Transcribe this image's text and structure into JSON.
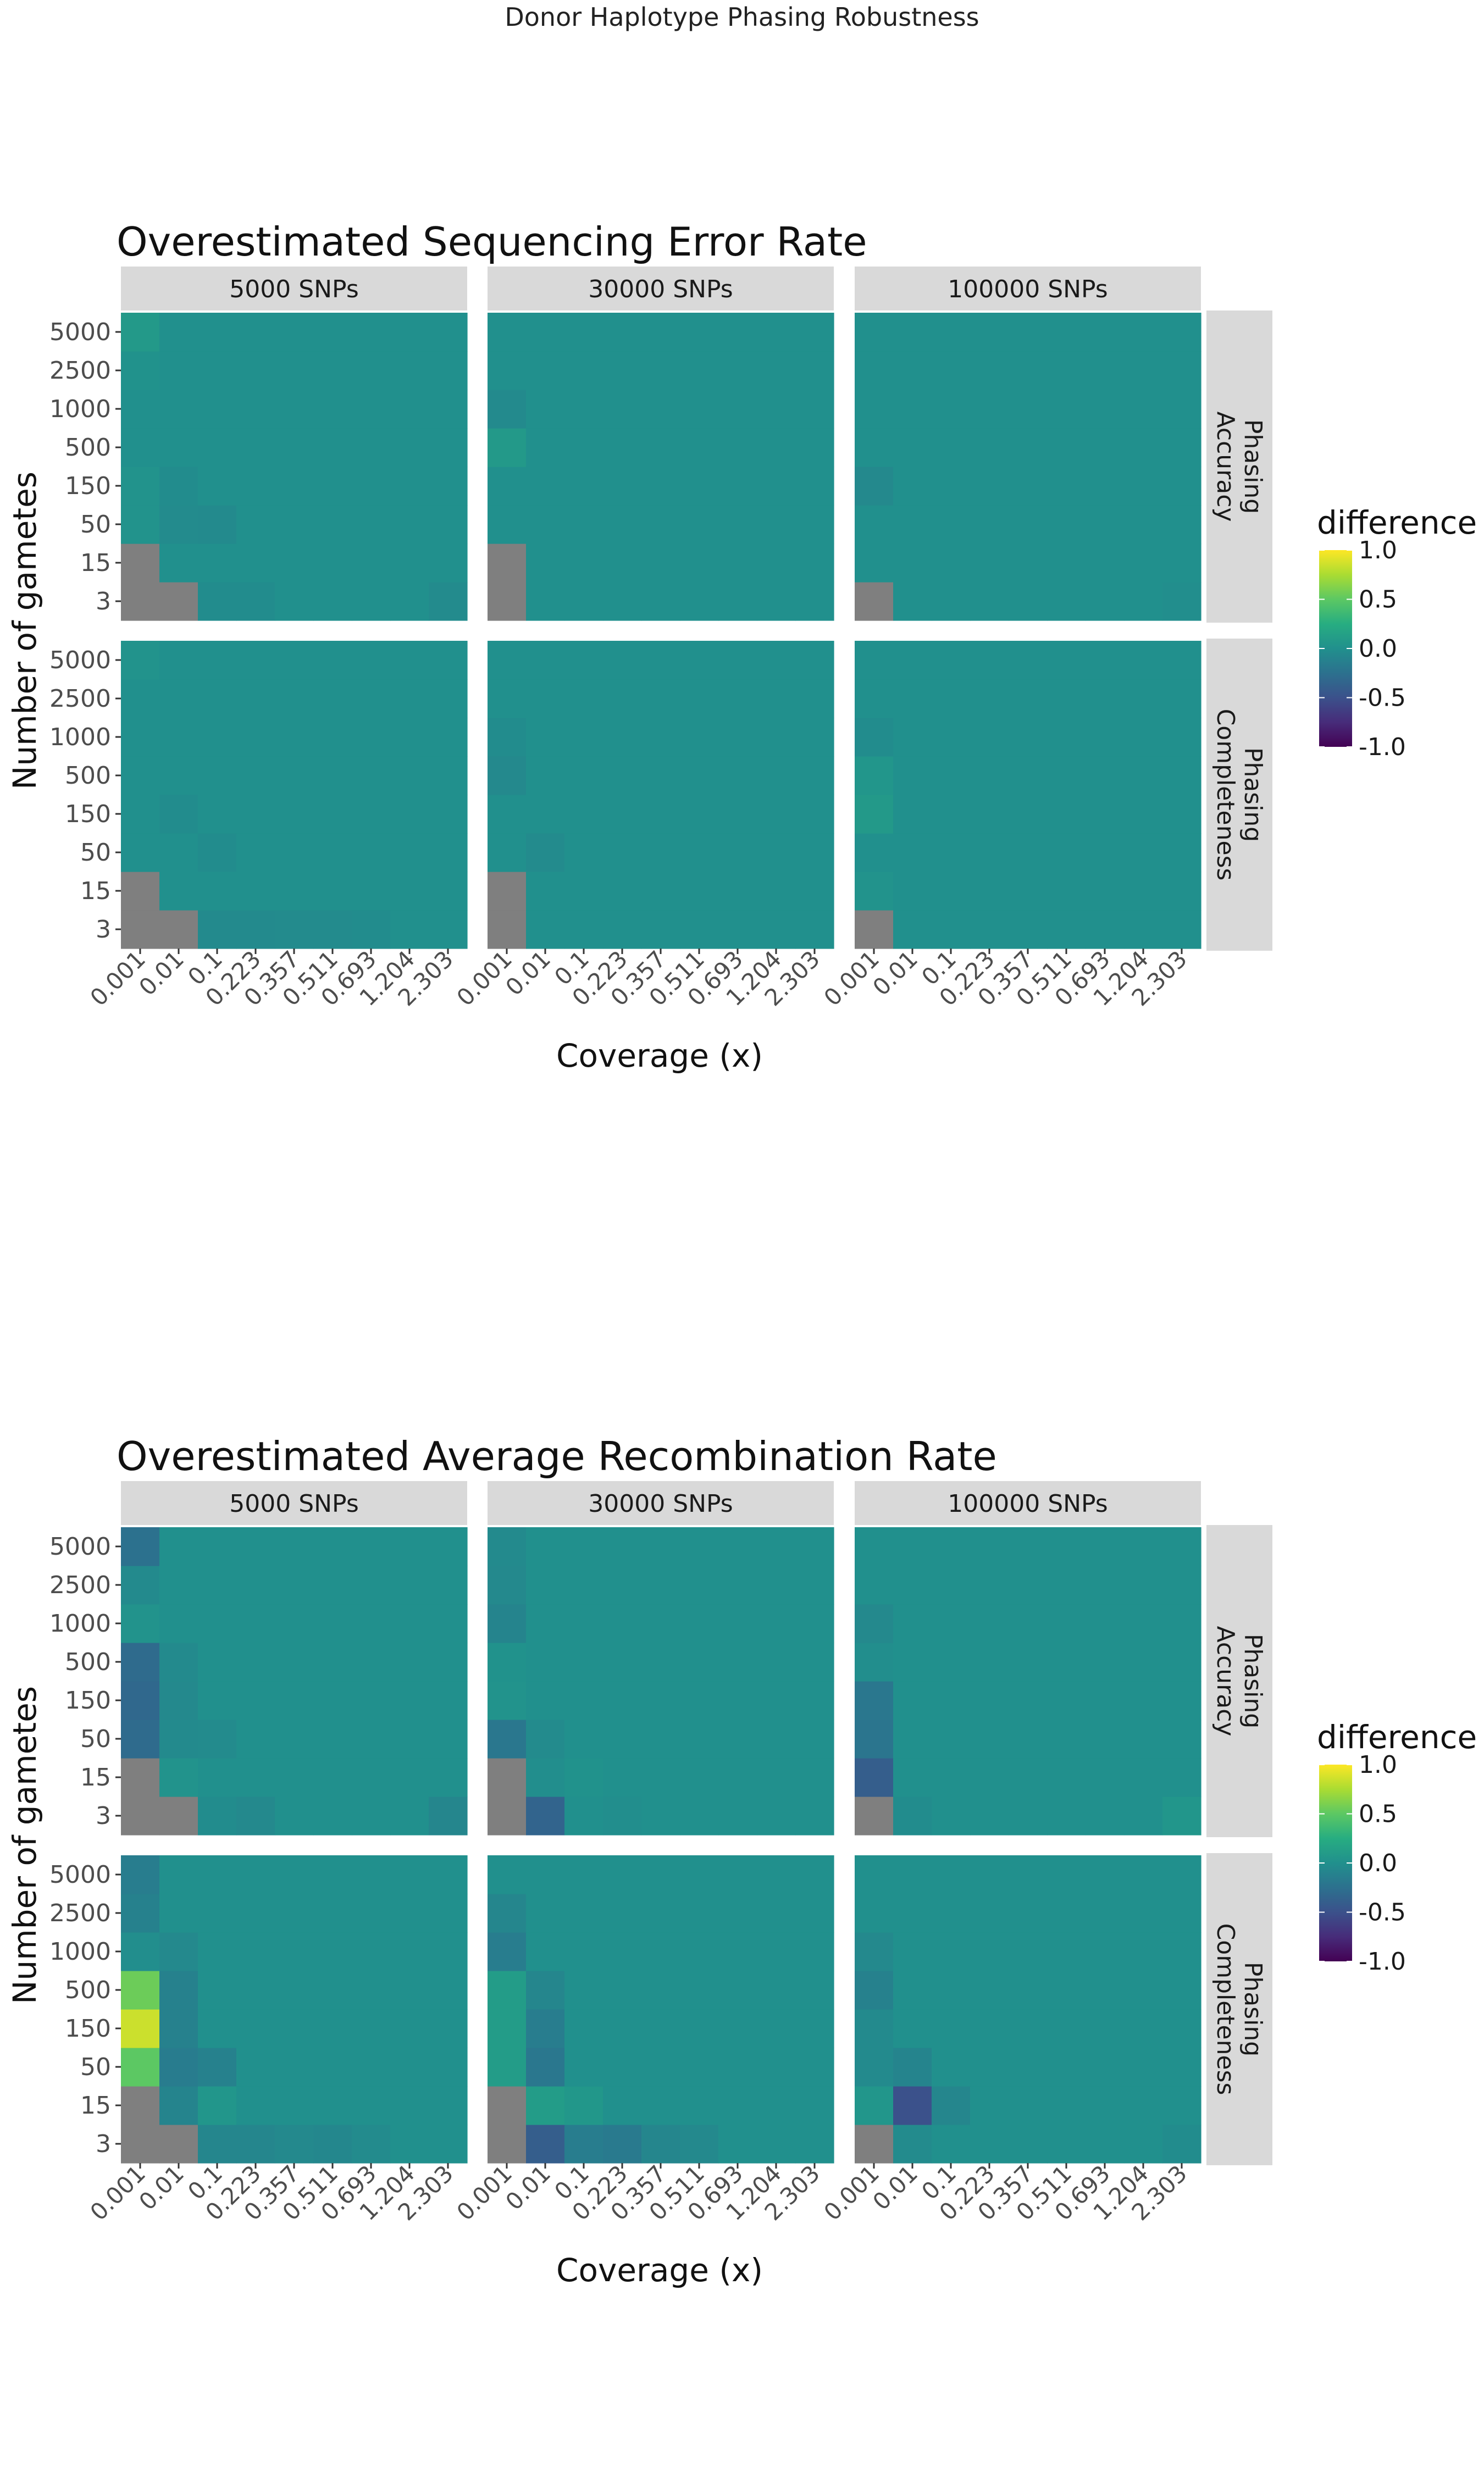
{
  "figure": {
    "title": "Donor Haplotype Phasing Robustness"
  },
  "chart_data": [
    {
      "type": "heatmap",
      "title": "Overestimated Sequencing Error Rate",
      "xlabel": "Coverage (x)",
      "ylabel": "Number of gametes",
      "x_categories": [
        "0.001",
        "0.01",
        "0.1",
        "0.223",
        "0.357",
        "0.511",
        "0.693",
        "1.204",
        "2.303"
      ],
      "y_categories": [
        "3",
        "15",
        "50",
        "150",
        "500",
        "1000",
        "2500",
        "5000"
      ],
      "facet_columns": [
        "5000 SNPs",
        "30000 SNPs",
        "100000 SNPs"
      ],
      "facet_rows": [
        "Phasing\nAccuracy",
        "Phasing\nCompleteness"
      ],
      "legend": {
        "title": "difference",
        "ticks": [
          "1.0",
          "0.5",
          "0.0",
          "-0.5",
          "-1.0"
        ],
        "range": [
          -1,
          1
        ],
        "position": "right"
      },
      "background_value": 0.0,
      "missing_color": "#7f7f7f",
      "missing_cells": [
        {
          "facet": [
            0,
            0
          ],
          "cells": [
            [
              0,
              0
            ],
            [
              1,
              0
            ],
            [
              0,
              1
            ]
          ]
        },
        {
          "facet": [
            0,
            1
          ],
          "cells": [
            [
              0,
              0
            ],
            [
              0,
              1
            ]
          ]
        },
        {
          "facet": [
            0,
            2
          ],
          "cells": [
            [
              0,
              0
            ]
          ]
        },
        {
          "facet": [
            1,
            0
          ],
          "cells": [
            [
              0,
              0
            ],
            [
              1,
              0
            ],
            [
              0,
              1
            ]
          ]
        },
        {
          "facet": [
            1,
            1
          ],
          "cells": [
            [
              0,
              0
            ],
            [
              0,
              1
            ]
          ]
        },
        {
          "facet": [
            1,
            2
          ],
          "cells": [
            [
              0,
              0
            ]
          ]
        }
      ],
      "nonzero_cells": [
        {
          "facet": [
            0,
            0
          ],
          "cells": [
            [
              0,
              7,
              0.08
            ],
            [
              0,
              6,
              0.02
            ],
            [
              1,
              2,
              -0.04
            ],
            [
              1,
              3,
              -0.03
            ],
            [
              2,
              2,
              -0.05
            ],
            [
              2,
              0,
              -0.03
            ],
            [
              3,
              0,
              -0.03
            ],
            [
              8,
              0,
              -0.04
            ],
            [
              0,
              2,
              0.03
            ],
            [
              0,
              3,
              0.03
            ]
          ]
        },
        {
          "facet": [
            0,
            1
          ],
          "cells": [
            [
              0,
              4,
              0.08
            ],
            [
              0,
              5,
              -0.05
            ]
          ]
        },
        {
          "facet": [
            0,
            2
          ],
          "cells": [
            [
              0,
              3,
              -0.06
            ],
            [
              8,
              0,
              -0.02
            ]
          ]
        },
        {
          "facet": [
            1,
            0
          ],
          "cells": [
            [
              0,
              7,
              0.03
            ],
            [
              1,
              3,
              -0.03
            ],
            [
              2,
              2,
              -0.03
            ],
            [
              2,
              0,
              -0.05
            ],
            [
              3,
              0,
              -0.05
            ],
            [
              4,
              0,
              -0.04
            ],
            [
              5,
              0,
              -0.04
            ],
            [
              6,
              0,
              -0.03
            ]
          ]
        },
        {
          "facet": [
            1,
            1
          ],
          "cells": [
            [
              0,
              4,
              -0.06
            ],
            [
              0,
              5,
              -0.03
            ],
            [
              1,
              2,
              -0.04
            ]
          ]
        },
        {
          "facet": [
            1,
            2
          ],
          "cells": [
            [
              0,
              3,
              0.08
            ],
            [
              0,
              4,
              0.05
            ],
            [
              0,
              1,
              0.03
            ],
            [
              0,
              5,
              -0.03
            ]
          ]
        }
      ]
    },
    {
      "type": "heatmap",
      "title": "Overestimated Average Recombination Rate",
      "xlabel": "Coverage (x)",
      "ylabel": "Number of gametes",
      "x_categories": [
        "0.001",
        "0.01",
        "0.1",
        "0.223",
        "0.357",
        "0.511",
        "0.693",
        "1.204",
        "2.303"
      ],
      "y_categories": [
        "3",
        "15",
        "50",
        "150",
        "500",
        "1000",
        "2500",
        "5000"
      ],
      "facet_columns": [
        "5000 SNPs",
        "30000 SNPs",
        "100000 SNPs"
      ],
      "facet_rows": [
        "Phasing\nAccuracy",
        "Phasing\nCompleteness"
      ],
      "legend": {
        "title": "difference",
        "ticks": [
          "1.0",
          "0.5",
          "0.0",
          "-0.5",
          "-1.0"
        ],
        "range": [
          -1,
          1
        ],
        "position": "right"
      },
      "background_value": 0.0,
      "missing_color": "#7f7f7f",
      "missing_cells": [
        {
          "facet": [
            0,
            0
          ],
          "cells": [
            [
              0,
              0
            ],
            [
              1,
              0
            ],
            [
              0,
              1
            ]
          ]
        },
        {
          "facet": [
            0,
            1
          ],
          "cells": [
            [
              0,
              0
            ],
            [
              0,
              1
            ]
          ]
        },
        {
          "facet": [
            0,
            2
          ],
          "cells": [
            [
              0,
              0
            ]
          ]
        },
        {
          "facet": [
            1,
            0
          ],
          "cells": [
            [
              0,
              0
            ],
            [
              1,
              0
            ],
            [
              0,
              1
            ]
          ]
        },
        {
          "facet": [
            1,
            1
          ],
          "cells": [
            [
              0,
              0
            ],
            [
              0,
              1
            ]
          ]
        },
        {
          "facet": [
            1,
            2
          ],
          "cells": [
            [
              0,
              0
            ]
          ]
        }
      ],
      "nonzero_cells": [
        {
          "facet": [
            0,
            0
          ],
          "cells": [
            [
              0,
              7,
              -0.25
            ],
            [
              0,
              6,
              -0.05
            ],
            [
              0,
              5,
              0.03
            ],
            [
              0,
              4,
              -0.3
            ],
            [
              0,
              3,
              -0.32
            ],
            [
              0,
              2,
              -0.3
            ],
            [
              1,
              4,
              -0.05
            ],
            [
              1,
              3,
              -0.06
            ],
            [
              1,
              2,
              -0.05
            ],
            [
              2,
              2,
              -0.04
            ],
            [
              1,
              1,
              0.03
            ],
            [
              2,
              0,
              -0.03
            ],
            [
              3,
              0,
              -0.06
            ],
            [
              8,
              0,
              -0.08
            ]
          ]
        },
        {
          "facet": [
            0,
            1
          ],
          "cells": [
            [
              0,
              7,
              -0.05
            ],
            [
              0,
              6,
              -0.06
            ],
            [
              0,
              5,
              -0.1
            ],
            [
              0,
              4,
              0.02
            ],
            [
              0,
              3,
              0.03
            ],
            [
              0,
              2,
              -0.2
            ],
            [
              1,
              2,
              -0.04
            ],
            [
              1,
              0,
              -0.35
            ],
            [
              1,
              1,
              -0.02
            ],
            [
              2,
              1,
              0.02
            ],
            [
              3,
              0,
              -0.02
            ]
          ]
        },
        {
          "facet": [
            0,
            2
          ],
          "cells": [
            [
              0,
              5,
              -0.06
            ],
            [
              0,
              4,
              -0.02
            ],
            [
              0,
              3,
              -0.2
            ],
            [
              0,
              2,
              -0.22
            ],
            [
              0,
              1,
              -0.4
            ],
            [
              1,
              0,
              -0.03
            ],
            [
              8,
              0,
              0.05
            ]
          ]
        },
        {
          "facet": [
            1,
            0
          ],
          "cells": [
            [
              0,
              7,
              -0.15
            ],
            [
              0,
              6,
              -0.12
            ],
            [
              0,
              5,
              -0.02
            ],
            [
              0,
              4,
              0.55
            ],
            [
              0,
              3,
              0.85
            ],
            [
              0,
              2,
              0.5
            ],
            [
              1,
              5,
              -0.06
            ],
            [
              1,
              4,
              -0.12
            ],
            [
              1,
              3,
              -0.12
            ],
            [
              1,
              2,
              -0.16
            ],
            [
              2,
              2,
              -0.12
            ],
            [
              1,
              1,
              -0.1
            ],
            [
              2,
              1,
              0.05
            ],
            [
              2,
              0,
              -0.08
            ],
            [
              3,
              0,
              -0.08
            ],
            [
              4,
              0,
              -0.06
            ],
            [
              5,
              0,
              -0.07
            ],
            [
              6,
              0,
              -0.04
            ]
          ]
        },
        {
          "facet": [
            1,
            1
          ],
          "cells": [
            [
              0,
              6,
              -0.08
            ],
            [
              0,
              5,
              -0.15
            ],
            [
              0,
              4,
              0.1
            ],
            [
              0,
              3,
              0.1
            ],
            [
              0,
              2,
              0.1
            ],
            [
              1,
              4,
              -0.08
            ],
            [
              1,
              3,
              -0.15
            ],
            [
              1,
              2,
              -0.2
            ],
            [
              1,
              1,
              0.1
            ],
            [
              2,
              1,
              0.06
            ],
            [
              1,
              0,
              -0.4
            ],
            [
              2,
              0,
              -0.15
            ],
            [
              3,
              0,
              -0.18
            ],
            [
              4,
              0,
              -0.08
            ],
            [
              5,
              0,
              -0.06
            ]
          ]
        },
        {
          "facet": [
            1,
            2
          ],
          "cells": [
            [
              0,
              5,
              -0.06
            ],
            [
              0,
              4,
              -0.12
            ],
            [
              0,
              3,
              -0.05
            ],
            [
              0,
              2,
              -0.05
            ],
            [
              0,
              1,
              0.05
            ],
            [
              1,
              2,
              -0.1
            ],
            [
              1,
              1,
              -0.5
            ],
            [
              2,
              1,
              -0.08
            ],
            [
              1,
              0,
              -0.04
            ],
            [
              8,
              0,
              -0.03
            ]
          ]
        }
      ]
    }
  ]
}
